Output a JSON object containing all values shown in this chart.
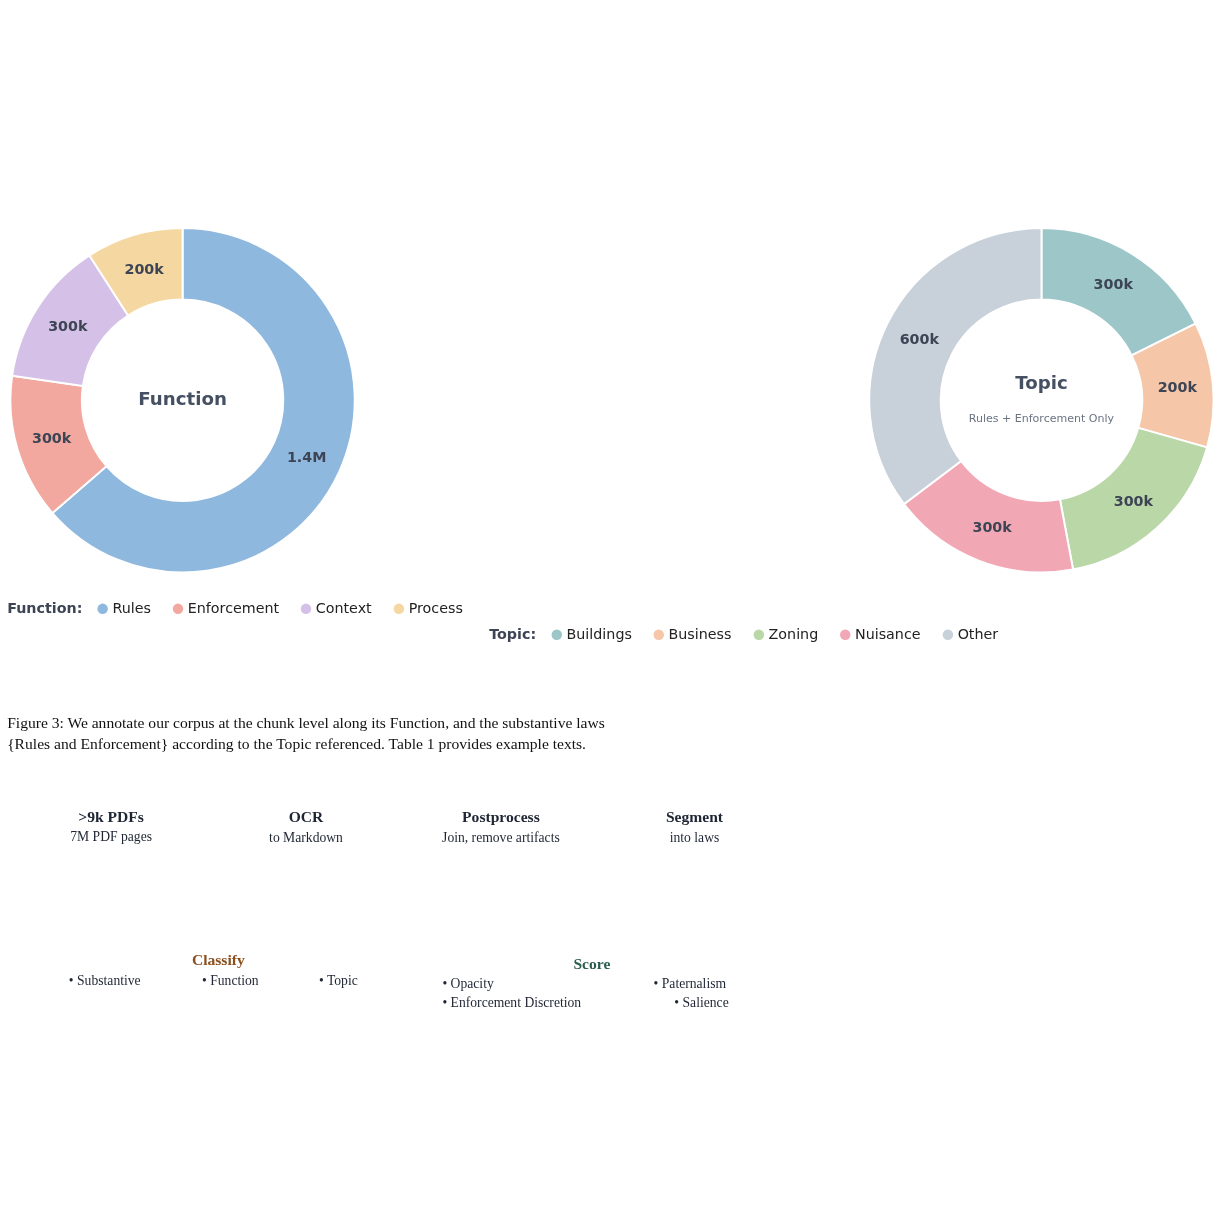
{
  "chart_data": [
    {
      "type": "donut",
      "title": "Function",
      "legend_title": "Function:",
      "legend": "bottom",
      "categories": [
        "Rules",
        "Enforcement",
        "Context",
        "Process"
      ],
      "values": [
        1400000,
        300000,
        300000,
        200000
      ],
      "value_labels": [
        "1.4M",
        "300k",
        "300k",
        "200k"
      ],
      "colors": [
        "#8fb8de",
        "#f2a89e",
        "#d5c0e8",
        "#f5d7a1"
      ]
    },
    {
      "type": "donut",
      "title": "Topic",
      "subtitle": "Rules + Enforcement Only",
      "legend_title": "Topic:",
      "legend": "bottom",
      "categories": [
        "Buildings",
        "Business",
        "Zoning",
        "Nuisance",
        "Other"
      ],
      "values": [
        300000,
        200000,
        300000,
        300000,
        600000
      ],
      "value_labels": [
        "300k",
        "200k",
        "300k",
        "300k",
        "600k"
      ],
      "colors": [
        "#9dc6c9",
        "#f5c6a8",
        "#bad7a8",
        "#f2a8b4",
        "#c8d0da"
      ]
    },
    {
      "type": "other",
      "annotations": [
        "Figure 3: We annotate our corpus at the chunk level along its Function, and the substantive laws",
        "{Rules and Enforcement} according to the Topic referenced. Table 1 provides example texts.",
        ">9k PDFs",
        "7M PDF pages",
        "OCR",
        "to Markdown",
        "Postprocess",
        "Join, remove artifacts",
        "Segment",
        "into laws",
        "Classify",
        "• Substantive",
        "• Function",
        "• Topic",
        "Score",
        "• Opacity",
        "• Paternalism",
        "• Enforcement Discretion",
        "• Salience"
      ]
    }
  ]
}
